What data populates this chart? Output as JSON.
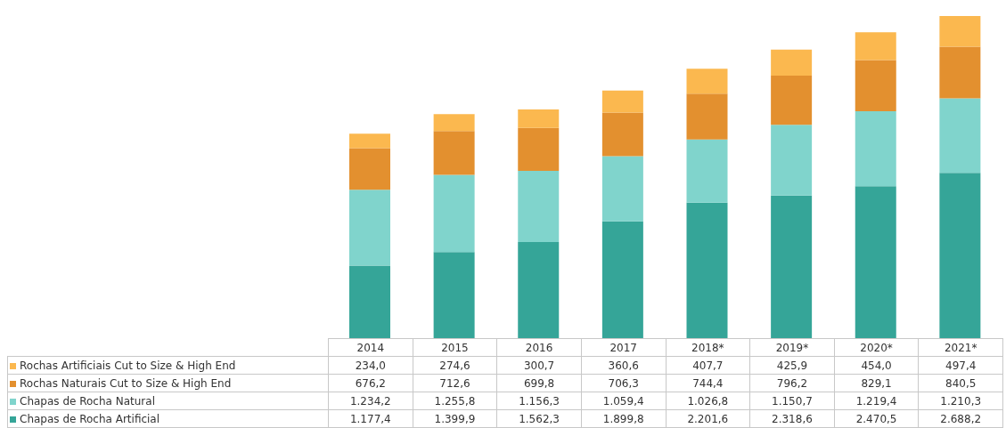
{
  "chart_data": {
    "type": "bar",
    "stacked": true,
    "legend": "bottom",
    "categories": [
      "2014",
      "2015",
      "2016",
      "2017",
      "2018*",
      "2019*",
      "2020*",
      "2021*"
    ],
    "series": [
      {
        "name": "Chapas de Rocha Artificial",
        "color": "#35a598",
        "values": [
          1177.4,
          1399.9,
          1562.3,
          1899.8,
          2201.6,
          2318.6,
          2470.5,
          2688.2
        ],
        "value_labels": [
          "1.177,4",
          "1.399,9",
          "1.562,3",
          "1.899,8",
          "2.201,6",
          "2.318,6",
          "2.470,5",
          "2.688,2"
        ]
      },
      {
        "name": "Chapas de Rocha Natural",
        "color": "#80d4cc",
        "values": [
          1234.2,
          1255.8,
          1156.3,
          1059.4,
          1026.8,
          1150.7,
          1219.4,
          1210.3
        ],
        "value_labels": [
          "1.234,2",
          "1.255,8",
          "1.156,3",
          "1.059,4",
          "1.026,8",
          "1.150,7",
          "1.219,4",
          "1.210,3"
        ]
      },
      {
        "name": "Rochas Naturais Cut to Size & High End",
        "color": "#e3902f",
        "values": [
          676.2,
          712.6,
          699.8,
          706.3,
          744.4,
          796.2,
          829.1,
          840.5
        ],
        "value_labels": [
          "676,2",
          "712,6",
          "699,8",
          "706,3",
          "744,4",
          "796,2",
          "829,1",
          "840,5"
        ]
      },
      {
        "name": "Rochas Artificiais Cut to Size & High End",
        "color": "#fbb84f",
        "values": [
          234.0,
          274.6,
          300.7,
          360.6,
          407.7,
          425.9,
          454.0,
          497.4
        ],
        "value_labels": [
          "234,0",
          "274,6",
          "300,7",
          "360,6",
          "407,7",
          "425,9",
          "454,0",
          "497,4"
        ]
      }
    ]
  }
}
